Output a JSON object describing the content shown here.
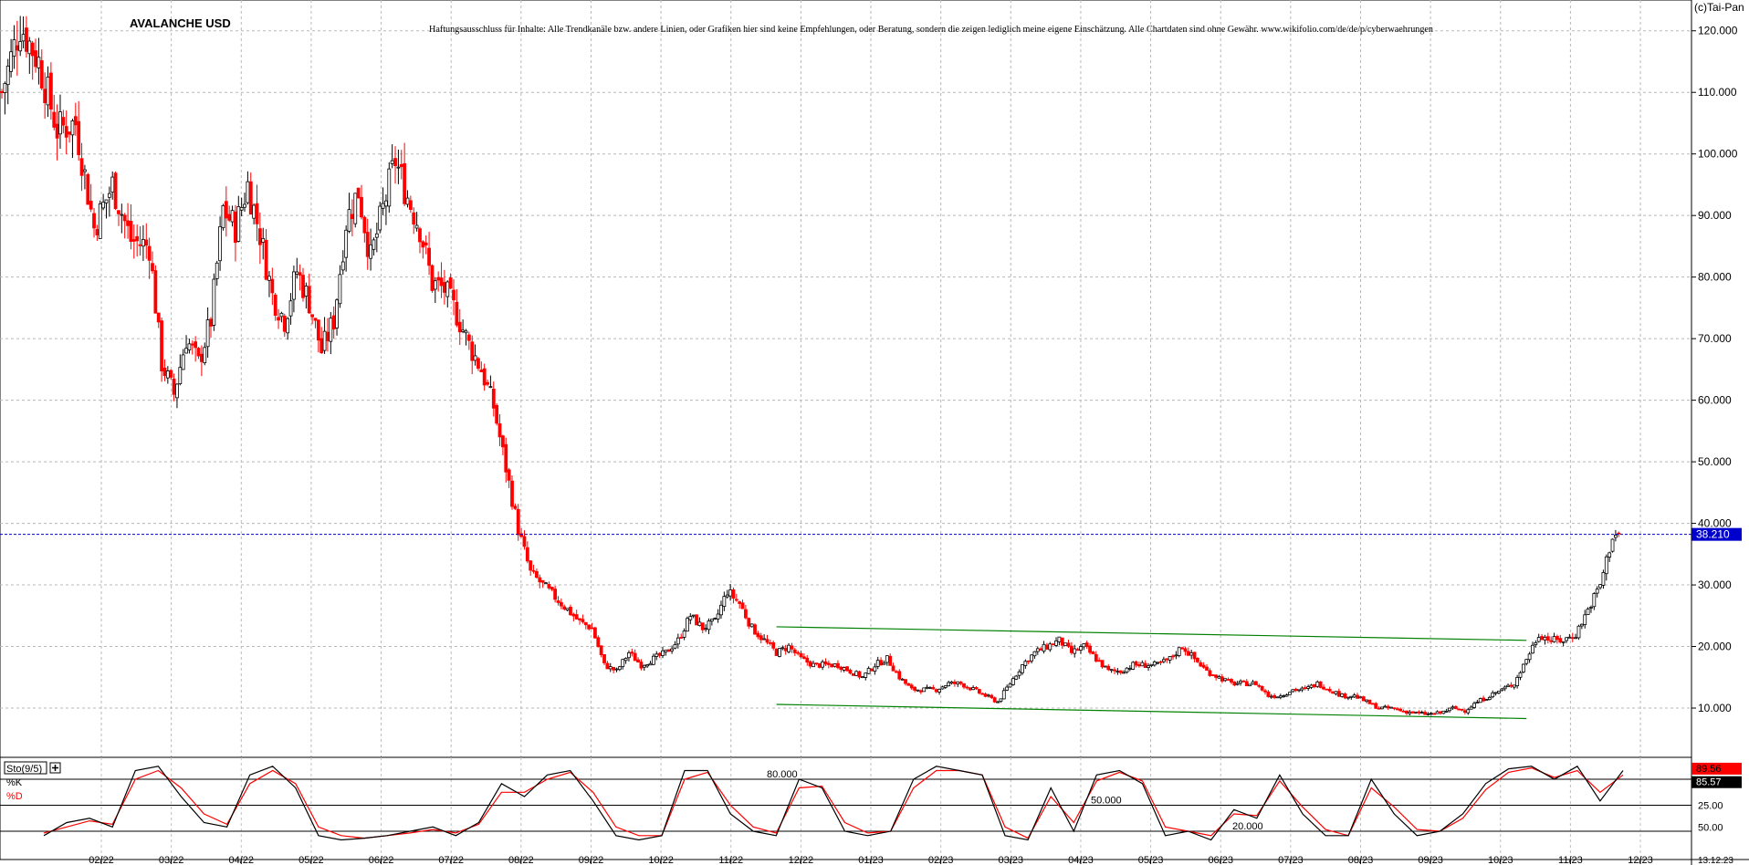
{
  "title": "AVALANCHE USD",
  "disclaimer": "Haftungsausschluss für Inhalte: Alle Trendkanäle bzw. andere Linien, oder Grafiken hier sind keine Empfehlungen, oder Beratung, sondern die zeigen lediglich meine eigene Einschätzung. Alle Chartdaten sind ohne Gewähr. www.wikifolio.com/de/de/p/cyberwaehrungen",
  "copyright": "(c)Tai-Pan",
  "current_price_label": "38.210",
  "current_price": 38.21,
  "date_label": "13.12.23",
  "chart_data": [
    {
      "type": "candlestick",
      "title": "AVALANCHE USD",
      "x_tick_labels": [
        "02/22",
        "03/22",
        "04/22",
        "05/22",
        "06/22",
        "07/22",
        "08/22",
        "09/22",
        "10/22",
        "11/22",
        "12/22",
        "01/23",
        "02/23",
        "03/23",
        "04/23",
        "05/23",
        "06/23",
        "07/23",
        "08/23",
        "09/23",
        "10/23",
        "11/23",
        "12/23"
      ],
      "y_tick_labels": [
        "10.000",
        "20.000",
        "30.000",
        "40.000",
        "50.000",
        "60.000",
        "70.000",
        "80.000",
        "90.000",
        "100.000",
        "110.000",
        "120.000"
      ],
      "y_ticks": [
        10,
        20,
        30,
        40,
        50,
        60,
        70,
        80,
        90,
        100,
        110,
        120
      ],
      "ylim": [
        2,
        125
      ],
      "grid": true,
      "colors": {
        "up": "#000000",
        "down": "#ff0000",
        "trend": "#008000",
        "price_line": "#0000cc"
      },
      "series": [
        {
          "points": [
            [
              0,
              110
            ],
            [
              3,
              121
            ],
            [
              6,
              115
            ],
            [
              9,
              104
            ],
            [
              12,
              105
            ],
            [
              15,
              88
            ],
            [
              18,
              95
            ],
            [
              21,
              86
            ],
            [
              24,
              85
            ],
            [
              26,
              66
            ],
            [
              28,
              61
            ],
            [
              30,
              70
            ],
            [
              32,
              66
            ],
            [
              34,
              73
            ],
            [
              36,
              91
            ],
            [
              38,
              88
            ],
            [
              40,
              95
            ],
            [
              42,
              87
            ],
            [
              44,
              77
            ],
            [
              46,
              73
            ],
            [
              48,
              81
            ],
            [
              50,
              76
            ],
            [
              52,
              68
            ],
            [
              54,
              73
            ],
            [
              56,
              89
            ],
            [
              58,
              94
            ],
            [
              60,
              83
            ],
            [
              62,
              91
            ],
            [
              64,
              99
            ],
            [
              66,
              93
            ],
            [
              68,
              88
            ],
            [
              70,
              79
            ],
            [
              72,
              78
            ],
            [
              74,
              74
            ],
            [
              76,
              69
            ],
            [
              78,
              65
            ],
            [
              80,
              59
            ],
            [
              82,
              49
            ],
            [
              84,
              39
            ],
            [
              86,
              32
            ],
            [
              88,
              30
            ],
            [
              90,
              28
            ],
            [
              92,
              26
            ],
            [
              94,
              24
            ],
            [
              96,
              23
            ],
            [
              98,
              17
            ],
            [
              100,
              16
            ],
            [
              102,
              19
            ],
            [
              104,
              17
            ],
            [
              106,
              18
            ],
            [
              108,
              19
            ],
            [
              110,
              21
            ],
            [
              112,
              25
            ],
            [
              114,
              23
            ],
            [
              116,
              24
            ],
            [
              118,
              29
            ],
            [
              120,
              27
            ],
            [
              122,
              23
            ],
            [
              124,
              21
            ],
            [
              126,
              19
            ],
            [
              128,
              20
            ],
            [
              130,
              18
            ],
            [
              132,
              17
            ],
            [
              134,
              17
            ],
            [
              136,
              17
            ],
            [
              138,
              16
            ],
            [
              140,
              15
            ],
            [
              142,
              17
            ],
            [
              144,
              18
            ],
            [
              146,
              15
            ],
            [
              148,
              13
            ],
            [
              150,
              13
            ],
            [
              152,
              13
            ],
            [
              154,
              14
            ],
            [
              156,
              14
            ],
            [
              158,
              13
            ],
            [
              160,
              12
            ],
            [
              162,
              11
            ],
            [
              164,
              14
            ],
            [
              166,
              17
            ],
            [
              168,
              19
            ],
            [
              170,
              20
            ],
            [
              172,
              21
            ],
            [
              174,
              19
            ],
            [
              176,
              20
            ],
            [
              178,
              18
            ],
            [
              180,
              16
            ],
            [
              182,
              16
            ],
            [
              184,
              17
            ],
            [
              186,
              17
            ],
            [
              188,
              17
            ],
            [
              190,
              18
            ],
            [
              192,
              20
            ],
            [
              194,
              18
            ],
            [
              196,
              16
            ],
            [
              198,
              15
            ],
            [
              200,
              14
            ],
            [
              202,
              14
            ],
            [
              204,
              14
            ],
            [
              206,
              12
            ],
            [
              208,
              12
            ],
            [
              210,
              13
            ],
            [
              212,
              13
            ],
            [
              214,
              14
            ],
            [
              216,
              13
            ],
            [
              218,
              12
            ],
            [
              220,
              12
            ],
            [
              222,
              11
            ],
            [
              224,
              10
            ],
            [
              226,
              10
            ],
            [
              228,
              9.5
            ],
            [
              230,
              9.2
            ],
            [
              232,
              9
            ],
            [
              234,
              9.2
            ],
            [
              236,
              10
            ],
            [
              238,
              9.6
            ],
            [
              240,
              11
            ],
            [
              242,
              12
            ],
            [
              244,
              13
            ],
            [
              246,
              14
            ],
            [
              248,
              18
            ],
            [
              250,
              22
            ],
            [
              252,
              21
            ],
            [
              254,
              21
            ],
            [
              256,
              22
            ],
            [
              258,
              26
            ],
            [
              260,
              30
            ],
            [
              262,
              38
            ],
            [
              263,
              38.2
            ]
          ]
        }
      ],
      "annotations": [
        {
          "type": "trend_line",
          "points": [
            [
              126,
              23.2
            ],
            [
              248,
              21
            ]
          ]
        },
        {
          "type": "trend_line",
          "points": [
            [
              126,
              10.6
            ],
            [
              248,
              8.3
            ]
          ]
        }
      ]
    },
    {
      "type": "line",
      "name": "Sto(9/5)",
      "ylim": [
        0,
        100
      ],
      "levels": [
        20,
        50,
        80
      ],
      "level_labels": [
        "20.000",
        "50.000",
        "80.000"
      ],
      "y_tick_labels": [
        "25.00",
        "50.00"
      ],
      "last_values": {
        "k": "89.56",
        "d": "85.57"
      },
      "series": [
        {
          "name": "%K",
          "color": "#000000",
          "values": [
            15,
            30,
            35,
            25,
            90,
            95,
            60,
            30,
            25,
            85,
            95,
            70,
            15,
            10,
            12,
            15,
            20,
            25,
            15,
            30,
            75,
            60,
            85,
            90,
            55,
            15,
            10,
            15,
            90,
            90,
            40,
            20,
            15,
            80,
            70,
            20,
            15,
            20,
            80,
            95,
            90,
            85,
            15,
            10,
            70,
            20,
            85,
            90,
            75,
            15,
            20,
            10,
            45,
            35,
            85,
            40,
            15,
            15,
            80,
            40,
            15,
            20,
            40,
            75,
            92,
            95,
            80,
            95,
            55,
            90
          ]
        },
        {
          "name": "%D",
          "color": "#ff0000",
          "values": [
            18,
            25,
            32,
            28,
            80,
            90,
            70,
            40,
            28,
            75,
            90,
            75,
            25,
            15,
            12,
            15,
            18,
            22,
            18,
            28,
            65,
            65,
            80,
            88,
            65,
            25,
            15,
            15,
            80,
            88,
            50,
            25,
            18,
            70,
            72,
            30,
            18,
            20,
            70,
            90,
            90,
            85,
            25,
            12,
            60,
            30,
            78,
            88,
            78,
            25,
            20,
            15,
            40,
            38,
            78,
            48,
            22,
            15,
            70,
            48,
            22,
            20,
            35,
            68,
            88,
            93,
            82,
            90,
            65,
            85
          ]
        }
      ]
    }
  ]
}
